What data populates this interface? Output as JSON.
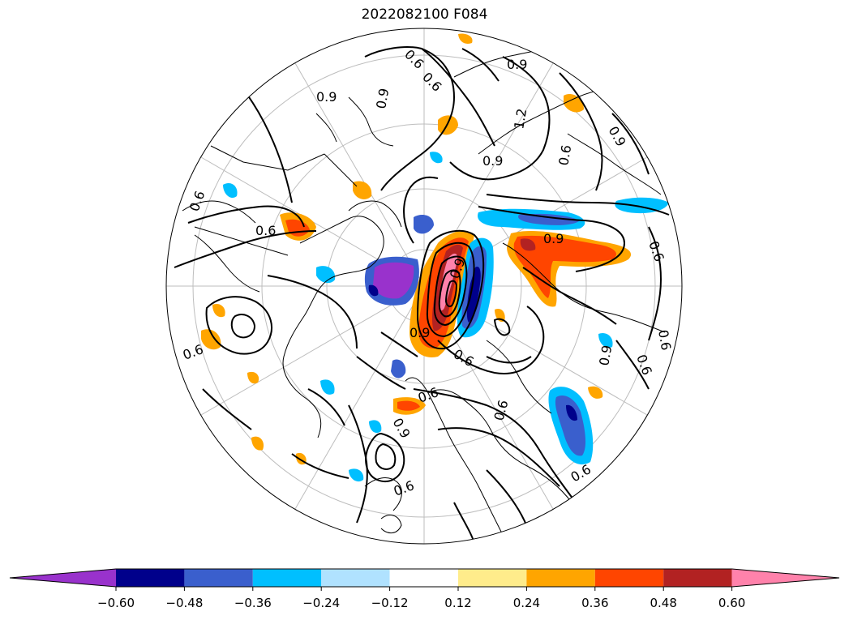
{
  "title": "2022082100 F084",
  "projection": "north-polar-stereographic",
  "contour_labels": [
    "0.6",
    "0.6",
    "0.9",
    "0.9",
    "0.6",
    "0.6",
    "0.9",
    "0.9",
    "1.2",
    "0.9",
    "0.6",
    "0.9",
    "0.6",
    "0.6",
    "0.9",
    "0.6",
    "0.6",
    "0.9",
    "0.6",
    "0.6",
    "0.9",
    "0.6",
    "0.6",
    "0.6",
    "0.9"
  ],
  "colorbar": {
    "ticks": [
      "−0.60",
      "−0.48",
      "−0.36",
      "−0.24",
      "−0.12",
      "0.12",
      "0.24",
      "0.36",
      "0.48",
      "0.60"
    ],
    "colors": [
      "#9932CC",
      "#00008B",
      "#3A5FCD",
      "#00BFFF",
      "#B0E2FF",
      "#FFFFFF",
      "#FFEC8B",
      "#FFA500",
      "#FF4500",
      "#B22222",
      "#FF82AB"
    ],
    "extend": "both"
  },
  "colors": {
    "contour": "#000000",
    "coastline": "#000000",
    "grid": "#bdbdbd"
  }
}
